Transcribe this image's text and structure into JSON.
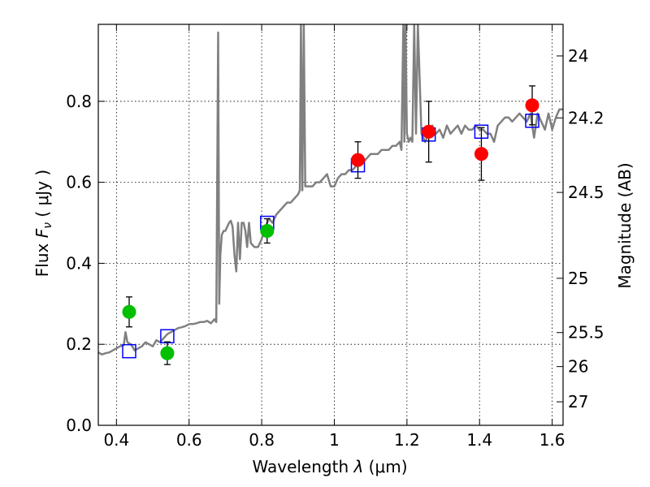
{
  "chart_data": {
    "type": "scatter",
    "xlabel": "Wavelength  λ (μm)",
    "ylabel": "Flux  F_ν  ( μJy )",
    "ylabel_parts": {
      "prefix": "Flux  ",
      "symbol": "F",
      "subscript": "ν",
      "suffix": "  ( μJy )"
    },
    "xlabel_parts": {
      "prefix": "Wavelength  ",
      "symbol": "λ",
      "suffix": " (μm)"
    },
    "y2label": "Magnitude (AB)",
    "xlim": [
      0.35,
      1.63
    ],
    "ylim": [
      0.0,
      0.99
    ],
    "grid": true,
    "x_ticks": [
      0.4,
      0.6,
      0.8,
      1.0,
      1.2,
      1.4,
      1.6
    ],
    "x_tick_labels": [
      "0.4",
      "0.6",
      "0.8",
      "1",
      "1.2",
      "1.4",
      "1.6"
    ],
    "y_ticks": [
      0.0,
      0.2,
      0.4,
      0.6,
      0.8
    ],
    "y_tick_labels": [
      "0.0",
      "0.2",
      "0.4",
      "0.6",
      "0.8"
    ],
    "y2_ticks": [
      {
        "label": "24",
        "flux": 0.912
      },
      {
        "label": "24.2",
        "flux": 0.759
      },
      {
        "label": "24.5",
        "flux": 0.575
      },
      {
        "label": "25",
        "flux": 0.363
      },
      {
        "label": "25.5",
        "flux": 0.229
      },
      {
        "label": "26",
        "flux": 0.145
      },
      {
        "label": "27",
        "flux": 0.058
      }
    ],
    "series": [
      {
        "name": "template spectrum",
        "kind": "line",
        "color": "#808080",
        "x": [
          0.35,
          0.36,
          0.37,
          0.38,
          0.39,
          0.4,
          0.41,
          0.42,
          0.425,
          0.43,
          0.44,
          0.45,
          0.46,
          0.47,
          0.48,
          0.49,
          0.5,
          0.51,
          0.52,
          0.53,
          0.54,
          0.55,
          0.56,
          0.57,
          0.58,
          0.59,
          0.6,
          0.61,
          0.62,
          0.63,
          0.64,
          0.65,
          0.66,
          0.67,
          0.675,
          0.68,
          0.683,
          0.686,
          0.69,
          0.695,
          0.7,
          0.705,
          0.71,
          0.715,
          0.72,
          0.725,
          0.73,
          0.735,
          0.74,
          0.745,
          0.75,
          0.755,
          0.76,
          0.765,
          0.77,
          0.78,
          0.79,
          0.8,
          0.81,
          0.82,
          0.83,
          0.84,
          0.85,
          0.86,
          0.87,
          0.88,
          0.89,
          0.9,
          0.905,
          0.908,
          0.912,
          0.916,
          0.92,
          0.93,
          0.94,
          0.95,
          0.96,
          0.97,
          0.98,
          0.99,
          1.0,
          1.01,
          1.02,
          1.03,
          1.04,
          1.05,
          1.06,
          1.07,
          1.08,
          1.09,
          1.1,
          1.11,
          1.12,
          1.13,
          1.14,
          1.15,
          1.16,
          1.17,
          1.18,
          1.185,
          1.19,
          1.193,
          1.196,
          1.2,
          1.205,
          1.21,
          1.215,
          1.22,
          1.225,
          1.23,
          1.24,
          1.25,
          1.26,
          1.27,
          1.28,
          1.29,
          1.3,
          1.31,
          1.32,
          1.33,
          1.34,
          1.35,
          1.36,
          1.37,
          1.38,
          1.39,
          1.4,
          1.41,
          1.42,
          1.43,
          1.44,
          1.45,
          1.46,
          1.47,
          1.48,
          1.49,
          1.5,
          1.51,
          1.52,
          1.53,
          1.54,
          1.55,
          1.56,
          1.57,
          1.58,
          1.59,
          1.6,
          1.61,
          1.62,
          1.63
        ],
        "y": [
          0.18,
          0.175,
          0.178,
          0.18,
          0.185,
          0.19,
          0.195,
          0.198,
          0.23,
          0.205,
          0.2,
          0.185,
          0.19,
          0.195,
          0.205,
          0.2,
          0.195,
          0.21,
          0.205,
          0.215,
          0.225,
          0.23,
          0.235,
          0.24,
          0.242,
          0.245,
          0.25,
          0.25,
          0.252,
          0.255,
          0.255,
          0.258,
          0.252,
          0.262,
          0.255,
          0.97,
          0.3,
          0.42,
          0.47,
          0.48,
          0.48,
          0.49,
          0.5,
          0.505,
          0.49,
          0.42,
          0.38,
          0.5,
          0.41,
          0.5,
          0.5,
          0.48,
          0.44,
          0.5,
          0.45,
          0.44,
          0.44,
          0.46,
          0.49,
          0.51,
          0.5,
          0.52,
          0.53,
          0.54,
          0.55,
          0.55,
          0.56,
          0.57,
          0.58,
          0.99,
          0.58,
          0.99,
          0.59,
          0.59,
          0.59,
          0.6,
          0.6,
          0.61,
          0.62,
          0.59,
          0.59,
          0.61,
          0.62,
          0.62,
          0.63,
          0.63,
          0.64,
          0.65,
          0.65,
          0.66,
          0.67,
          0.67,
          0.67,
          0.68,
          0.68,
          0.68,
          0.69,
          0.69,
          0.7,
          0.68,
          0.99,
          0.7,
          0.99,
          0.72,
          0.7,
          0.71,
          0.7,
          0.99,
          0.72,
          0.99,
          0.72,
          0.7,
          0.72,
          0.74,
          0.72,
          0.73,
          0.71,
          0.74,
          0.72,
          0.73,
          0.74,
          0.72,
          0.74,
          0.73,
          0.73,
          0.74,
          0.73,
          0.73,
          0.72,
          0.72,
          0.7,
          0.74,
          0.75,
          0.76,
          0.76,
          0.75,
          0.76,
          0.77,
          0.76,
          0.75,
          0.77,
          0.71,
          0.77,
          0.75,
          0.73,
          0.77,
          0.73,
          0.76,
          0.78,
          0.78
        ]
      },
      {
        "name": "green observed photometry",
        "kind": "points",
        "color": "#00c000",
        "x": [
          0.435,
          0.54,
          0.815
        ],
        "y": [
          0.28,
          0.178,
          0.48
        ],
        "yerr": [
          0.037,
          0.028,
          0.03
        ]
      },
      {
        "name": "red observed photometry",
        "kind": "points",
        "color": "#ff0000",
        "x": [
          1.065,
          1.26,
          1.405,
          1.545
        ],
        "y": [
          0.655,
          0.725,
          0.67,
          0.79
        ],
        "yerr": [
          0.045,
          0.075,
          0.065,
          0.048
        ]
      },
      {
        "name": "model photometry",
        "kind": "open-squares",
        "color": "#0000ff",
        "x": [
          0.435,
          0.54,
          0.815,
          1.065,
          1.26,
          1.405,
          1.545
        ],
        "y": [
          0.183,
          0.22,
          0.5,
          0.642,
          0.718,
          0.725,
          0.752
        ]
      }
    ]
  }
}
